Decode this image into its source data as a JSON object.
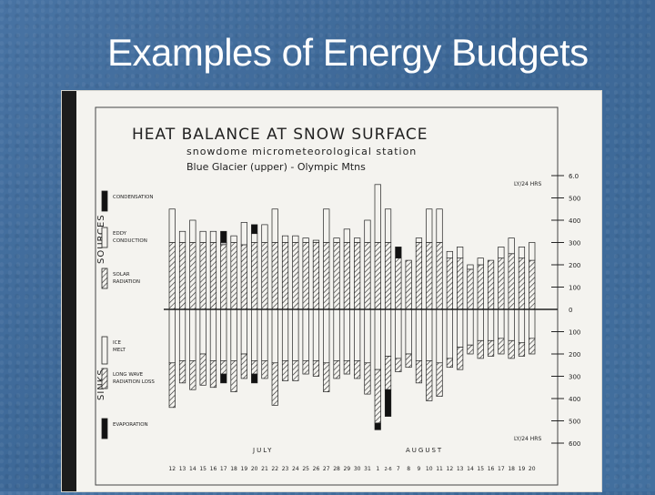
{
  "slide": {
    "title": "Examples of Energy Budgets"
  },
  "chart_data": {
    "type": "bar",
    "title": "HEAT BALANCE AT SNOW SURFACE",
    "subtitle": "snowdome micrometeorological station",
    "subtitle2": "Blue Glacier (upper) - Olympic Mtns",
    "axis_units_top": "LY/24 HRS",
    "axis_units_bottom": "LY/24 HRS",
    "y_ticks_top": [
      "6.0",
      "500",
      "400",
      "300",
      "200",
      "100"
    ],
    "y_zero": "0",
    "y_ticks_bottom": [
      "100",
      "200",
      "300",
      "400",
      "500",
      "600"
    ],
    "ylim": [
      -600,
      600
    ],
    "group_labels": {
      "sources": "SOURCES",
      "sinks": "SINKS"
    },
    "month_labels": {
      "july": "JULY",
      "august": "AUGUST"
    },
    "legend": [
      {
        "name": "CONDENSATION",
        "pattern": "solid"
      },
      {
        "name": "EDDY CONDUCTION",
        "pattern": "open"
      },
      {
        "name": "SOLAR RADIATION",
        "pattern": "hatch"
      },
      {
        "name": "ICE MELT",
        "pattern": "open"
      },
      {
        "name": "LONG WAVE RADIATION LOSS",
        "pattern": "hatch"
      },
      {
        "name": "EVAPORATION",
        "pattern": "solid"
      }
    ],
    "categories": [
      "12",
      "13",
      "14",
      "15",
      "16",
      "17",
      "18",
      "19",
      "20",
      "21",
      "22",
      "23",
      "24",
      "25",
      "26",
      "27",
      "28",
      "29",
      "30",
      "31",
      "1",
      "2-6",
      "7",
      "8",
      "9",
      "10",
      "11",
      "12",
      "13",
      "14",
      "15",
      "16",
      "17",
      "18",
      "19",
      "20"
    ],
    "series_sources": [
      {
        "name": "SOLAR RADIATION",
        "values": [
          300,
          300,
          300,
          300,
          300,
          300,
          300,
          290,
          300,
          300,
          300,
          300,
          300,
          300,
          300,
          300,
          300,
          300,
          300,
          300,
          300,
          300,
          230,
          220,
          300,
          300,
          300,
          230,
          230,
          180,
          200,
          220,
          230,
          250,
          230,
          220
        ]
      },
      {
        "name": "EDDY CONDUCTION",
        "values": [
          150,
          50,
          100,
          50,
          50,
          -10,
          30,
          100,
          40,
          80,
          150,
          30,
          30,
          20,
          10,
          150,
          20,
          60,
          20,
          100,
          260,
          150,
          0,
          0,
          20,
          150,
          150,
          30,
          50,
          20,
          30,
          0,
          50,
          70,
          50,
          80
        ]
      },
      {
        "name": "CONDENSATION",
        "values": [
          0,
          0,
          0,
          0,
          0,
          50,
          0,
          0,
          40,
          0,
          0,
          0,
          0,
          0,
          0,
          0,
          0,
          0,
          0,
          0,
          0,
          0,
          50,
          0,
          0,
          0,
          0,
          0,
          0,
          0,
          0,
          0,
          0,
          0,
          0,
          0
        ]
      }
    ],
    "series_sinks": [
      {
        "name": "ICE MELT",
        "values": [
          240,
          230,
          230,
          200,
          230,
          230,
          230,
          200,
          230,
          230,
          240,
          230,
          230,
          230,
          230,
          240,
          230,
          230,
          230,
          240,
          270,
          210,
          220,
          200,
          230,
          230,
          240,
          220,
          170,
          160,
          140,
          140,
          130,
          140,
          150,
          130
        ]
      },
      {
        "name": "LONG WAVE RADIATION LOSS",
        "values": [
          200,
          100,
          130,
          140,
          120,
          60,
          140,
          110,
          60,
          80,
          190,
          90,
          90,
          60,
          70,
          130,
          80,
          60,
          80,
          140,
          240,
          150,
          60,
          60,
          100,
          180,
          150,
          40,
          100,
          40,
          80,
          70,
          70,
          80,
          60,
          70
        ]
      },
      {
        "name": "EVAPORATION",
        "values": [
          0,
          0,
          0,
          0,
          0,
          40,
          0,
          0,
          40,
          0,
          0,
          0,
          0,
          0,
          0,
          0,
          0,
          0,
          0,
          0,
          30,
          120,
          0,
          0,
          0,
          0,
          0,
          0,
          0,
          0,
          0,
          0,
          0,
          0,
          0,
          0
        ]
      }
    ]
  }
}
